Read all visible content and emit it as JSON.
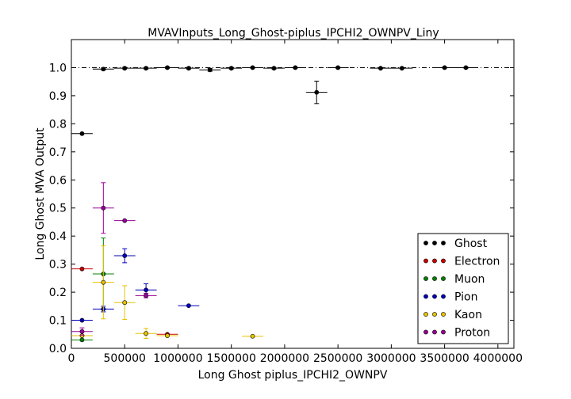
{
  "chart_data": {
    "type": "scatter",
    "title": "MVAVInputs_Long_Ghost-piplus_IPCHI2_OWNPV_Liny",
    "xlabel": "Long Ghost piplus_IPCHI2_OWNPV",
    "ylabel": "Long Ghost MVA Output",
    "xlim": [
      0,
      4150000
    ],
    "ylim": [
      0,
      1.1
    ],
    "xticks": [
      0,
      500000,
      1000000,
      1500000,
      2000000,
      2500000,
      3000000,
      3500000,
      4000000
    ],
    "xtick_labels": [
      "0",
      "500000",
      "1000000",
      "1500000",
      "2000000",
      "2500000",
      "3000000",
      "3500000",
      "4000000"
    ],
    "yticks": [
      0.0,
      0.1,
      0.2,
      0.3,
      0.4,
      0.5,
      0.6,
      0.7,
      0.8,
      0.9,
      1.0
    ],
    "ytick_labels": [
      "0.0",
      "0.1",
      "0.2",
      "0.3",
      "0.4",
      "0.5",
      "0.6",
      "0.7",
      "0.8",
      "0.9",
      "1.0"
    ],
    "reference_line_y": 1.0,
    "grid": false,
    "legend_position": "bottom-right",
    "series": [
      {
        "name": "Ghost",
        "color": "#000000",
        "points": [
          {
            "x": 100000,
            "y": 0.765,
            "xerr": 100000,
            "yerr": 0
          },
          {
            "x": 300000,
            "y": 0.995,
            "xerr": 100000,
            "yerr": 0.004
          },
          {
            "x": 500000,
            "y": 0.998,
            "xerr": 100000,
            "yerr": 0.003
          },
          {
            "x": 700000,
            "y": 0.998,
            "xerr": 100000,
            "yerr": 0.003
          },
          {
            "x": 900000,
            "y": 1.0,
            "xerr": 100000,
            "yerr": 0.002
          },
          {
            "x": 1100000,
            "y": 0.998,
            "xerr": 100000,
            "yerr": 0.003
          },
          {
            "x": 1300000,
            "y": 0.992,
            "xerr": 100000,
            "yerr": 0.005
          },
          {
            "x": 1500000,
            "y": 0.998,
            "xerr": 100000,
            "yerr": 0.003
          },
          {
            "x": 1700000,
            "y": 1.0,
            "xerr": 100000,
            "yerr": 0.002
          },
          {
            "x": 1900000,
            "y": 0.998,
            "xerr": 100000,
            "yerr": 0.003
          },
          {
            "x": 2100000,
            "y": 1.0,
            "xerr": 100000,
            "yerr": 0.002
          },
          {
            "x": 2300000,
            "y": 0.912,
            "xerr": 100000,
            "yerr": 0.04
          },
          {
            "x": 2500000,
            "y": 1.0,
            "xerr": 100000,
            "yerr": 0.002
          },
          {
            "x": 2900000,
            "y": 0.998,
            "xerr": 100000,
            "yerr": 0.002
          },
          {
            "x": 3100000,
            "y": 0.998,
            "xerr": 100000,
            "yerr": 0.002
          },
          {
            "x": 3500000,
            "y": 1.0,
            "xerr": 100000,
            "yerr": 0.002
          },
          {
            "x": 3700000,
            "y": 1.0,
            "xerr": 100000,
            "yerr": 0.002
          }
        ]
      },
      {
        "name": "Electron",
        "color": "#cc0000",
        "points": [
          {
            "x": 100000,
            "y": 0.283,
            "xerr": 100000,
            "yerr": 0
          },
          {
            "x": 900000,
            "y": 0.05,
            "xerr": 100000,
            "yerr": 0
          }
        ]
      },
      {
        "name": "Muon",
        "color": "#008000",
        "points": [
          {
            "x": 100000,
            "y": 0.03,
            "xerr": 100000,
            "yerr": 0
          },
          {
            "x": 300000,
            "y": 0.265,
            "xerr": 100000,
            "yerr": 0.128
          }
        ]
      },
      {
        "name": "Pion",
        "color": "#0000bb",
        "points": [
          {
            "x": 100000,
            "y": 0.1,
            "xerr": 100000,
            "yerr": 0
          },
          {
            "x": 300000,
            "y": 0.14,
            "xerr": 100000,
            "yerr": 0.01
          },
          {
            "x": 500000,
            "y": 0.33,
            "xerr": 100000,
            "yerr": 0.025
          },
          {
            "x": 700000,
            "y": 0.208,
            "xerr": 100000,
            "yerr": 0.022
          },
          {
            "x": 1100000,
            "y": 0.152,
            "xerr": 100000,
            "yerr": 0
          }
        ]
      },
      {
        "name": "Kaon",
        "color": "#e6c300",
        "points": [
          {
            "x": 100000,
            "y": 0.045,
            "xerr": 100000,
            "yerr": 0
          },
          {
            "x": 300000,
            "y": 0.235,
            "xerr": 100000,
            "yerr": 0.13
          },
          {
            "x": 500000,
            "y": 0.163,
            "xerr": 100000,
            "yerr": 0.06
          },
          {
            "x": 700000,
            "y": 0.053,
            "xerr": 100000,
            "yerr": 0.018
          },
          {
            "x": 900000,
            "y": 0.045,
            "xerr": 100000,
            "yerr": 0
          },
          {
            "x": 1700000,
            "y": 0.043,
            "xerr": 100000,
            "yerr": 0
          }
        ]
      },
      {
        "name": "Proton",
        "color": "#990099",
        "points": [
          {
            "x": 100000,
            "y": 0.06,
            "xerr": 100000,
            "yerr": 0.013
          },
          {
            "x": 300000,
            "y": 0.5,
            "xerr": 100000,
            "yerr": 0.09
          },
          {
            "x": 500000,
            "y": 0.455,
            "xerr": 100000,
            "yerr": 0
          },
          {
            "x": 700000,
            "y": 0.188,
            "xerr": 100000,
            "yerr": 0.008
          }
        ]
      }
    ]
  }
}
